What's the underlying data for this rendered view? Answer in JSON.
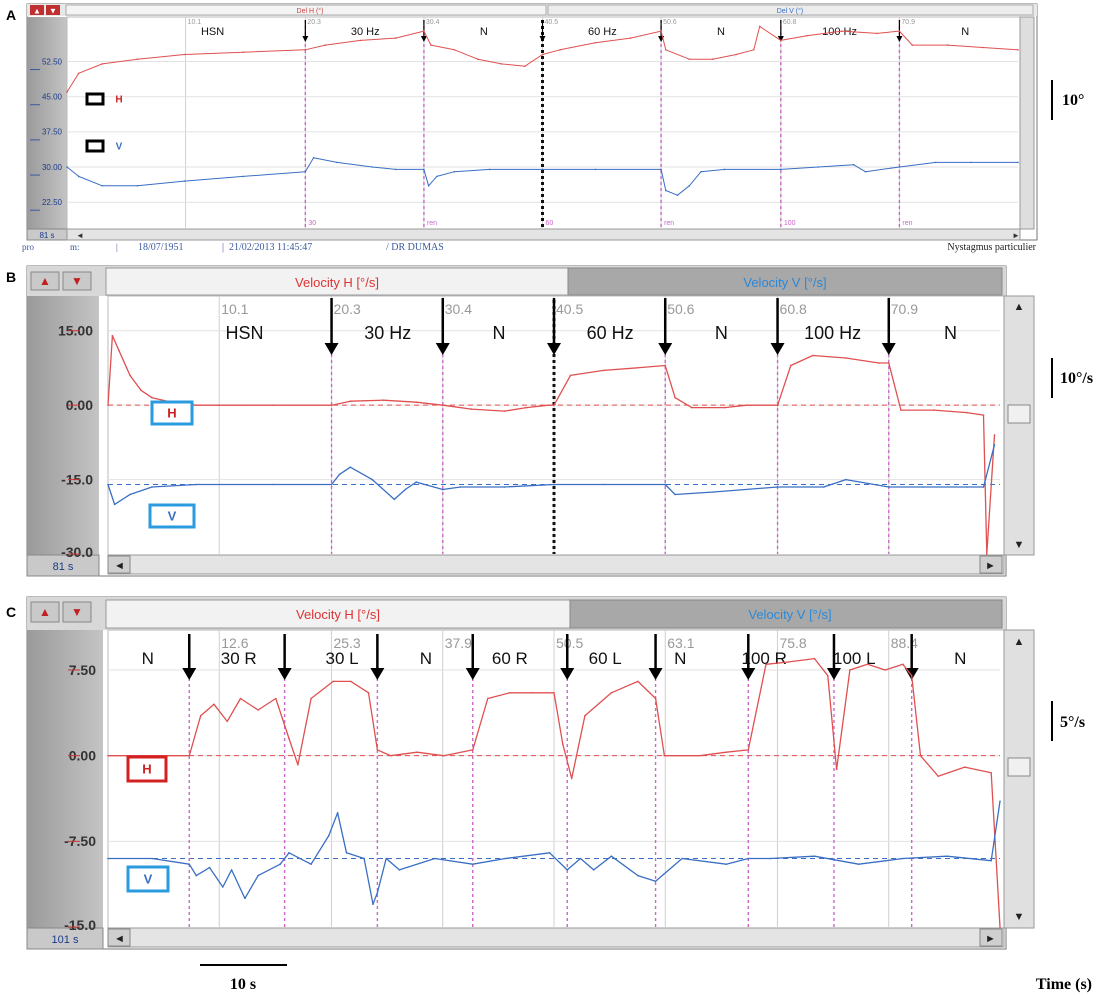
{
  "figure": {
    "time_scale_label": "10 s",
    "time_axis_label": "Time (s)"
  },
  "colors": {
    "h_trace": "#e05050",
    "v_trace": "#3a6fc4",
    "marker": "#cc66cc",
    "h_box_label": "#cc2222",
    "v_box_border": "#2b9be0",
    "h_box_border_c": "#d32020"
  },
  "chart_data": [
    {
      "panel": "A",
      "type": "line",
      "header_left": "Del H (°)",
      "header_right": "Del V (°)",
      "corner_label": "81 s",
      "y_ticks": [
        "52.50",
        "45.00",
        "37.50",
        "30.00",
        "22.50"
      ],
      "ylim": [
        17,
        62
      ],
      "xlim": [
        0,
        81
      ],
      "x_tick_labels": [
        {
          "x": 10.1,
          "label": "10.1"
        },
        {
          "x": 20.3,
          "label": "20.3"
        },
        {
          "x": 30.4,
          "label": "30.4"
        },
        {
          "x": 40.5,
          "label": "40.5"
        },
        {
          "x": 50.6,
          "label": "50.6"
        },
        {
          "x": 60.8,
          "label": "60.8"
        },
        {
          "x": 70.9,
          "label": "70.9"
        }
      ],
      "segments": [
        {
          "label": "HSN",
          "x": 12.4
        },
        {
          "label": "30 Hz",
          "x": 25.4
        },
        {
          "label": "N",
          "x": 35.5
        },
        {
          "label": "60 Hz",
          "x": 45.6
        },
        {
          "label": "N",
          "x": 55.7
        },
        {
          "label": "100 Hz",
          "x": 65.8
        },
        {
          "label": "N",
          "x": 76.5
        }
      ],
      "markers": [
        {
          "x": 20.3,
          "label": "30"
        },
        {
          "x": 30.4,
          "label": "ren"
        },
        {
          "x": 40.5,
          "label": "60",
          "style": "black"
        },
        {
          "x": 50.6,
          "label": "ren"
        },
        {
          "x": 60.8,
          "label": "100"
        },
        {
          "x": 70.9,
          "label": "ren"
        }
      ],
      "series": [
        {
          "name": "H",
          "color": "#e05050",
          "x": [
            0,
            1,
            3,
            6,
            10,
            15,
            20.3,
            22,
            25,
            28,
            30.4,
            31,
            33,
            35,
            37,
            39,
            40.5,
            42,
            45,
            48,
            50.6,
            51,
            53,
            55,
            57,
            58.5,
            59,
            60.8,
            63,
            66,
            69,
            70.9,
            72,
            75,
            78,
            81
          ],
          "y": [
            46,
            50,
            52,
            53,
            54,
            54.5,
            55,
            56,
            57,
            57.5,
            59,
            56,
            55,
            53,
            52,
            51.5,
            54,
            55,
            56.5,
            57.5,
            59,
            55,
            53,
            53,
            54,
            55,
            60,
            57,
            58,
            59,
            58.5,
            59,
            56,
            56,
            55.5,
            55
          ]
        },
        {
          "name": "V",
          "color": "#3a6fc4",
          "x": [
            0,
            1,
            3,
            6,
            10,
            15,
            20.3,
            21,
            23,
            26,
            28,
            30.4,
            30.8,
            31.5,
            33,
            36,
            40.5,
            45,
            50.6,
            51,
            52,
            53,
            54,
            56,
            60.8,
            64,
            67,
            68,
            70.9,
            74,
            77,
            81
          ],
          "y": [
            30,
            28,
            26,
            26,
            27,
            28,
            29,
            32,
            31,
            30,
            29.5,
            29.5,
            26,
            28,
            29,
            29.5,
            29.5,
            29.5,
            29.5,
            25,
            24,
            26,
            29,
            29.5,
            29.5,
            30,
            30.5,
            29,
            30,
            31,
            31,
            31
          ]
        }
      ],
      "legend": [
        {
          "name": "H"
        },
        {
          "name": "V"
        }
      ],
      "scale_bar_label": "10°",
      "footer": {
        "left": "pro",
        "mid1": "m:",
        "date1": "18/07/1951",
        "date2": "21/02/2013 11:45:47",
        "doctor": "/ DR DUMAS",
        "right": "Nystagmus particulier"
      }
    },
    {
      "panel": "B",
      "type": "line",
      "header_left": "Velocity H [°/s]",
      "header_right": "Velocity V [°/s]",
      "corner_label": "81 s",
      "y_ticks": [
        "15.00",
        "0.00",
        "-15.0",
        "-30.0"
      ],
      "ylim": [
        -30,
        22
      ],
      "xlim": [
        0,
        81
      ],
      "x_tick_labels": [
        {
          "x": 10.1,
          "label": "10.1"
        },
        {
          "x": 20.3,
          "label": "20.3"
        },
        {
          "x": 30.4,
          "label": "30.4"
        },
        {
          "x": 40.5,
          "label": "40.5"
        },
        {
          "x": 50.6,
          "label": "50.6"
        },
        {
          "x": 60.8,
          "label": "60.8"
        },
        {
          "x": 70.9,
          "label": "70.9"
        }
      ],
      "segments": [
        {
          "label": "HSN",
          "x": 12.4
        },
        {
          "label": "30 Hz",
          "x": 25.4
        },
        {
          "label": "N",
          "x": 35.5
        },
        {
          "label": "60 Hz",
          "x": 45.6
        },
        {
          "label": "N",
          "x": 55.7
        },
        {
          "label": "100 Hz",
          "x": 65.8
        },
        {
          "label": "N",
          "x": 76.5
        }
      ],
      "markers": [
        {
          "x": 20.3
        },
        {
          "x": 30.4
        },
        {
          "x": 40.5,
          "style": "black"
        },
        {
          "x": 50.6
        },
        {
          "x": 60.8
        },
        {
          "x": 70.9
        }
      ],
      "reference_lines": [
        0,
        -16
      ],
      "series": [
        {
          "name": "H",
          "color": "#e05050",
          "x": [
            0,
            0.4,
            1,
            2,
            3,
            4,
            6,
            8,
            10,
            15,
            20.3,
            22,
            25,
            28,
            30.4,
            33,
            36,
            38,
            40,
            40.5,
            42,
            45,
            48,
            50.6,
            51.5,
            53,
            56,
            58,
            60.8,
            62,
            64,
            67,
            70,
            70.9,
            72,
            75,
            78,
            79.5,
            79.8,
            80.5
          ],
          "y": [
            0,
            14,
            11,
            6,
            3,
            1.5,
            0.5,
            0,
            0,
            0,
            0,
            0.8,
            1,
            0.6,
            0,
            -0.8,
            -1.2,
            -0.5,
            0,
            0,
            6,
            7,
            7.5,
            8,
            1.5,
            -0.5,
            -0.5,
            0,
            0,
            8,
            10,
            9.5,
            8.5,
            8.5,
            -1,
            -1,
            -1.5,
            -2,
            -30,
            -6
          ]
        },
        {
          "name": "V",
          "color": "#3a6fc4",
          "x": [
            0,
            0.6,
            2,
            4,
            8,
            15,
            20.3,
            21,
            22,
            24,
            26,
            27,
            28,
            30.4,
            32,
            36,
            40.5,
            45,
            50.6,
            51.5,
            55,
            60.8,
            65,
            67,
            70.9,
            74,
            78,
            79.5,
            80.5
          ],
          "y": [
            -16,
            -20,
            -18,
            -16.5,
            -16,
            -16,
            -16,
            -14,
            -12.5,
            -15,
            -19,
            -17,
            -15.5,
            -17,
            -16.5,
            -16.5,
            -16,
            -16,
            -16,
            -18,
            -17.5,
            -16.5,
            -16.5,
            -15,
            -16.5,
            -16.5,
            -16.5,
            -16.5,
            -8
          ]
        }
      ],
      "legend": [
        {
          "name": "H"
        },
        {
          "name": "V"
        }
      ],
      "scale_bar_label": "10°/s"
    },
    {
      "panel": "C",
      "type": "line",
      "header_left": "Velocity H [°/s]",
      "header_right": "Velocity V [°/s]",
      "corner_label": "101 s",
      "y_ticks": [
        "7.50",
        "0.00",
        "-7.50",
        "-15.0"
      ],
      "ylim": [
        -15,
        11
      ],
      "xlim": [
        0,
        101
      ],
      "x_tick_labels": [
        {
          "x": 12.6,
          "label": "12.6"
        },
        {
          "x": 25.3,
          "label": "25.3"
        },
        {
          "x": 37.9,
          "label": "37.9"
        },
        {
          "x": 50.5,
          "label": "50.5"
        },
        {
          "x": 63.1,
          "label": "63.1"
        },
        {
          "x": 75.8,
          "label": "75.8"
        },
        {
          "x": 88.4,
          "label": "88.4"
        }
      ],
      "segments": [
        {
          "label": "N",
          "x": 4.5
        },
        {
          "label": "30 R",
          "x": 14.8
        },
        {
          "label": "30 L",
          "x": 26.5
        },
        {
          "label": "N",
          "x": 36.0
        },
        {
          "label": "60 R",
          "x": 45.5
        },
        {
          "label": "60 L",
          "x": 56.3
        },
        {
          "label": "N",
          "x": 64.8
        },
        {
          "label": "100 R",
          "x": 74.3
        },
        {
          "label": "100 L",
          "x": 84.5
        },
        {
          "label": "N",
          "x": 96.5
        }
      ],
      "markers": [
        {
          "x": 9.2
        },
        {
          "x": 20.0
        },
        {
          "x": 30.5
        },
        {
          "x": 41.3
        },
        {
          "x": 52.0
        },
        {
          "x": 62.0
        },
        {
          "x": 72.5
        },
        {
          "x": 82.2
        },
        {
          "x": 91.0
        }
      ],
      "reference_lines": [
        0,
        -9
      ],
      "series": [
        {
          "name": "H",
          "color": "#e05050",
          "x": [
            0,
            5,
            9.2,
            10.5,
            12,
            13.5,
            15,
            17,
            19,
            20.5,
            21.5,
            23,
            25.5,
            27.5,
            29.5,
            30.5,
            32,
            35,
            38,
            41.3,
            43,
            45.5,
            48,
            50.5,
            51.5,
            52.5,
            54,
            57,
            60,
            62,
            63,
            67,
            70,
            72.5,
            74.5,
            77,
            80,
            81.5,
            82.5,
            84,
            86,
            88,
            90,
            91,
            92,
            94,
            97,
            100,
            101
          ],
          "y": [
            0,
            0,
            0,
            3.5,
            4.5,
            3,
            5,
            4,
            5,
            1.5,
            -0.8,
            5,
            6.5,
            6.5,
            5.5,
            0.5,
            0,
            0.3,
            0,
            0.5,
            5,
            5.5,
            5.5,
            5.5,
            1,
            -2,
            3.5,
            5.5,
            6.5,
            5,
            0,
            0,
            0.3,
            0.5,
            8,
            8.2,
            8.5,
            7,
            -1.2,
            7.5,
            8,
            7.5,
            8,
            7,
            0,
            -1.8,
            -1,
            -1.5,
            -15
          ]
        },
        {
          "name": "V",
          "color": "#3a6fc4",
          "x": [
            0,
            5,
            9.2,
            10,
            11.5,
            13,
            14,
            15.5,
            17,
            19.5,
            20.5,
            23,
            25,
            26,
            27,
            29,
            30,
            30.5,
            31.5,
            33,
            37,
            41.3,
            45,
            50,
            52,
            53.5,
            55,
            57,
            60,
            62,
            65,
            70,
            72.5,
            75,
            80,
            85,
            90,
            95,
            100,
            101
          ],
          "y": [
            -9,
            -9,
            -9.5,
            -10.5,
            -9.8,
            -11.5,
            -10,
            -12.5,
            -10.5,
            -9.5,
            -8.5,
            -9.5,
            -7,
            -5,
            -8.5,
            -9,
            -13,
            -12,
            -9,
            -10,
            -9,
            -9.5,
            -9,
            -8.5,
            -10,
            -9,
            -10,
            -8.8,
            -10.5,
            -11,
            -9,
            -9.5,
            -9,
            -9,
            -8.8,
            -9.5,
            -9,
            -8.8,
            -9.2,
            -4
          ]
        }
      ],
      "legend": [
        {
          "name": "H"
        },
        {
          "name": "V"
        }
      ],
      "scale_bar_label": "5°/s"
    }
  ]
}
